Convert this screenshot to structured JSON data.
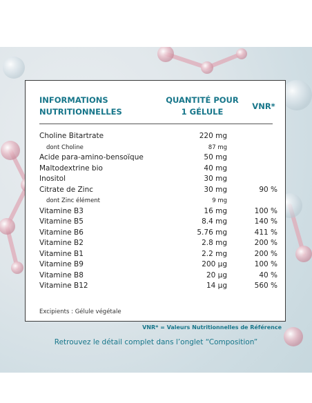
{
  "table": {
    "header_col1_line1": "INFORMATIONS",
    "header_col1_line2": "NUTRITIONNELLES",
    "header_col2_line1": "QUANTITÉ POUR",
    "header_col2_line2": "1 GÉLULE",
    "header_col3": "VNR*",
    "rows": [
      {
        "name": "Choline Bitartrate",
        "qty": "220 mg",
        "vnr": ""
      },
      {
        "name": "dont Choline",
        "qty": "87 mg",
        "vnr": ""
      },
      {
        "name": "Acide para-amino-bensoïque",
        "qty": "50 mg",
        "vnr": ""
      },
      {
        "name": "Maltodextrine bio",
        "qty": "40 mg",
        "vnr": ""
      },
      {
        "name": "Inositol",
        "qty": "30 mg",
        "vnr": ""
      },
      {
        "name": "Citrate de Zinc",
        "qty": "30 mg",
        "vnr": "90 %"
      },
      {
        "name": "dont Zinc élément",
        "qty": "9 mg",
        "vnr": ""
      },
      {
        "name": "Vitamine B3",
        "qty": "16 mg",
        "vnr": "100 %"
      },
      {
        "name": "Vitamine B5",
        "qty": "8.4 mg",
        "vnr": "140 %"
      },
      {
        "name": "Vitamine B6",
        "qty": "5.76 mg",
        "vnr": "411 %"
      },
      {
        "name": "Vitamine B2",
        "qty": "2.8 mg",
        "vnr": "200 %"
      },
      {
        "name": "Vitamine B1",
        "qty": "2.2 mg",
        "vnr": "200 %"
      },
      {
        "name": "Vitamine B9",
        "qty": "200 µg",
        "vnr": "100 %"
      },
      {
        "name": "Vitamine B8",
        "qty": "20 µg",
        "vnr": "40 %"
      },
      {
        "name": "Vitamine B12",
        "qty": "14 µg",
        "vnr": "560 %"
      }
    ],
    "excipients": "Excipients : Gélule végétale"
  },
  "footnote": "VNR* = Valeurs Nutritionnelles de Référence",
  "cta": "Retrouvez le détail complet dans l’onglet “Composition”",
  "colors": {
    "accent": "#17768a",
    "border": "#3a3a3a"
  }
}
